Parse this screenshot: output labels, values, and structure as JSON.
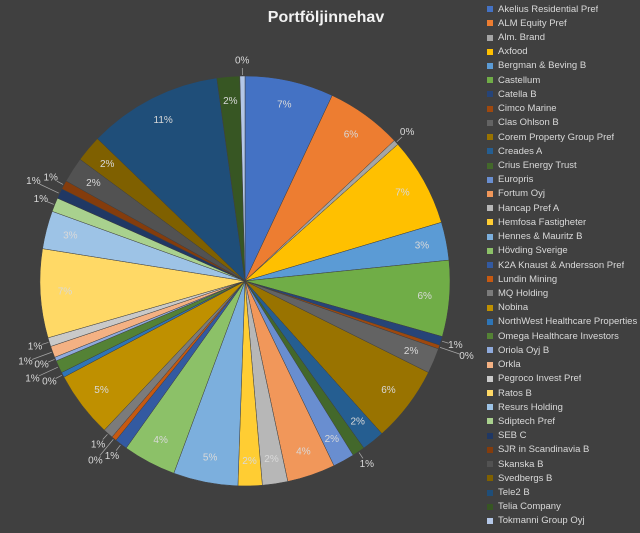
{
  "chart_data": {
    "type": "pie",
    "title": "Portföljinnehav",
    "legend_position": "right",
    "slices": [
      {
        "name": "Akelius Residential Pref",
        "value": 7.0,
        "label": "7%",
        "color": "#4472C4"
      },
      {
        "name": "ALM Equity Pref",
        "value": 6.0,
        "label": "6%",
        "color": "#ED7D31"
      },
      {
        "name": "Alm. Brand",
        "value": 0.4,
        "label": "0%",
        "color": "#A5A5A5"
      },
      {
        "name": "Axfood",
        "value": 7.0,
        "label": "7%",
        "color": "#FFC000"
      },
      {
        "name": "Bergman & Beving B",
        "value": 3.0,
        "label": "3%",
        "color": "#5B9BD5"
      },
      {
        "name": "Castellum",
        "value": 6.0,
        "label": "6%",
        "color": "#70AD47"
      },
      {
        "name": "Catella B",
        "value": 0.7,
        "label": "1%",
        "color": "#264478"
      },
      {
        "name": "Cimco Marine",
        "value": 0.3,
        "label": "0%",
        "color": "#9E480E"
      },
      {
        "name": "Clas Ohlson B",
        "value": 2.0,
        "label": "2%",
        "color": "#636363"
      },
      {
        "name": "Corem Property Group Pref",
        "value": 6.0,
        "label": "6%",
        "color": "#997300"
      },
      {
        "name": "Creades A",
        "value": 1.8,
        "label": "2%",
        "color": "#255E91"
      },
      {
        "name": "Crius Energy Trust",
        "value": 1.0,
        "label": "1%",
        "color": "#43682B"
      },
      {
        "name": "Europris",
        "value": 1.7,
        "label": "2%",
        "color": "#698ED0"
      },
      {
        "name": "Fortum Oyj",
        "value": 3.8,
        "label": "4%",
        "color": "#F1975A"
      },
      {
        "name": "Hancap Pref A",
        "value": 2.0,
        "label": "2%",
        "color": "#B7B7B7"
      },
      {
        "name": "Hemfosa Fastigheter",
        "value": 1.9,
        "label": "2%",
        "color": "#FFCD33"
      },
      {
        "name": "Hennes & Mauritz B",
        "value": 5.1,
        "label": "5%",
        "color": "#7CAFDD"
      },
      {
        "name": "Hövding Sverige",
        "value": 4.2,
        "label": "4%",
        "color": "#8CC168"
      },
      {
        "name": "K2A Knaust & Andersson Pref",
        "value": 1.0,
        "label": "1%",
        "color": "#335AA1"
      },
      {
        "name": "Lundin Mining",
        "value": 0.4,
        "label": "0%",
        "color": "#C65911"
      },
      {
        "name": "MQ Holding",
        "value": 0.8,
        "label": "1%",
        "color": "#7B7B7B"
      },
      {
        "name": "Nobina",
        "value": 5.2,
        "label": "5%",
        "color": "#BF9000"
      },
      {
        "name": "NorthWest Healthcare Properties",
        "value": 0.4,
        "label": "0%",
        "color": "#2E75B6"
      },
      {
        "name": "Omega Healthcare Investors",
        "value": 1.0,
        "label": "1%",
        "color": "#548235"
      },
      {
        "name": "Oriola Oyj B",
        "value": 0.3,
        "label": "0%",
        "color": "#8FAADC"
      },
      {
        "name": "Orkla",
        "value": 0.9,
        "label": "1%",
        "color": "#F4B183"
      },
      {
        "name": "Pegroco Invest Pref",
        "value": 0.7,
        "label": "1%",
        "color": "#C9C9C9"
      },
      {
        "name": "Ratos B",
        "value": 7.0,
        "label": "7%",
        "color": "#FFD966"
      },
      {
        "name": "Resurs Holding",
        "value": 3.0,
        "label": "3%",
        "color": "#9DC3E6"
      },
      {
        "name": "Sdiptech Pref",
        "value": 1.1,
        "label": "1%",
        "color": "#A9D18E"
      },
      {
        "name": "SEB C",
        "value": 0.8,
        "label": "1%",
        "color": "#203864"
      },
      {
        "name": "SJR in Scandinavia B",
        "value": 0.7,
        "label": "1%",
        "color": "#843C0C"
      },
      {
        "name": "Skanska B",
        "value": 2.0,
        "label": "2%",
        "color": "#525252"
      },
      {
        "name": "Svedbergs B",
        "value": 2.1,
        "label": "2%",
        "color": "#7F6000"
      },
      {
        "name": "Tele2 B",
        "value": 10.6,
        "label": "11%",
        "color": "#1F4E79"
      },
      {
        "name": "Telia Company",
        "value": 1.8,
        "label": "2%",
        "color": "#375623"
      },
      {
        "name": "Tokmanni Group Oyj",
        "value": 0.4,
        "label": "0%",
        "color": "#B4C7E7"
      }
    ]
  }
}
